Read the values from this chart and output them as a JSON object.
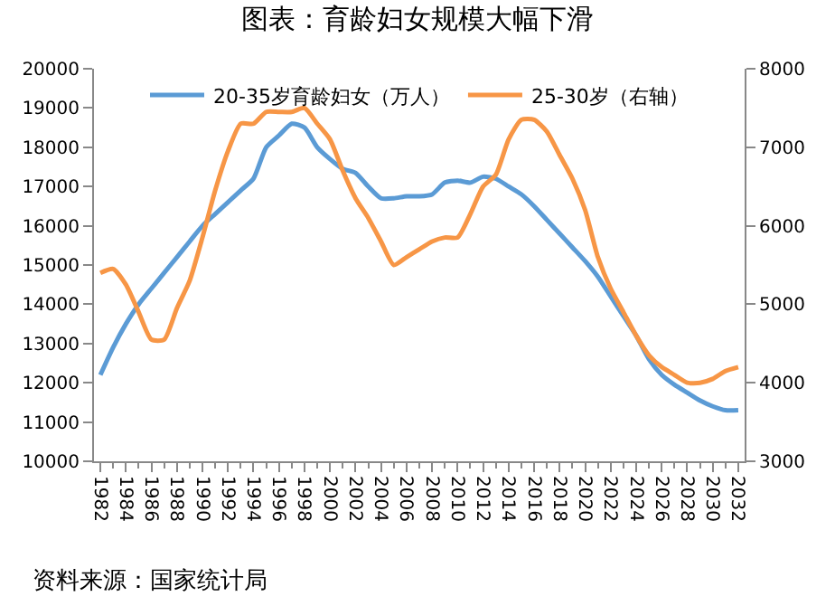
{
  "chart_data": {
    "type": "line",
    "title": "图表：育龄妇女规模大幅下滑",
    "x": [
      1982,
      1983,
      1984,
      1985,
      1986,
      1987,
      1988,
      1989,
      1990,
      1991,
      1992,
      1993,
      1994,
      1995,
      1996,
      1997,
      1998,
      1999,
      2000,
      2001,
      2002,
      2003,
      2004,
      2005,
      2006,
      2007,
      2008,
      2009,
      2010,
      2011,
      2012,
      2013,
      2014,
      2015,
      2016,
      2017,
      2018,
      2019,
      2020,
      2021,
      2022,
      2023,
      2024,
      2025,
      2026,
      2027,
      2028,
      2029,
      2030,
      2031,
      2032
    ],
    "series": [
      {
        "name": "20-35岁育龄妇女（万人）",
        "color": "#5b9bd5",
        "values": [
          12200,
          12900,
          13500,
          14000,
          14400,
          14800,
          15200,
          15600,
          16000,
          16300,
          16600,
          16900,
          17200,
          18000,
          18300,
          18600,
          18500,
          18000,
          17700,
          17450,
          17350,
          17000,
          16700,
          16700,
          16750,
          16750,
          16800,
          17100,
          17150,
          17100,
          17250,
          17200,
          17000,
          16800,
          16500,
          16150,
          15800,
          15450,
          15100,
          14700,
          14200,
          13700,
          13200,
          12600,
          12200,
          11950,
          11750,
          11550,
          11400,
          11300,
          11300
        ]
      },
      {
        "name": "25-30岁（右轴）",
        "color": "#f79646",
        "axis": "y2",
        "values": [
          5400,
          5450,
          5250,
          4900,
          4550,
          4550,
          4950,
          5300,
          5850,
          6450,
          6950,
          7300,
          7300,
          7450,
          7450,
          7450,
          7500,
          7300,
          7100,
          6700,
          6350,
          6100,
          5800,
          5500,
          5600,
          5700,
          5800,
          5850,
          5850,
          6150,
          6500,
          6650,
          7100,
          7350,
          7350,
          7200,
          6900,
          6600,
          6200,
          5600,
          5200,
          4900,
          4600,
          4350,
          4200,
          4100,
          4000,
          4000,
          4050,
          4150,
          4200
        ]
      }
    ],
    "xlim": [
      1981.5,
      2032.5
    ],
    "xticks": [
      1982,
      1984,
      1986,
      1988,
      1990,
      1992,
      1994,
      1996,
      1998,
      2000,
      2002,
      2004,
      2006,
      2008,
      2010,
      2012,
      2014,
      2016,
      2018,
      2020,
      2022,
      2024,
      2026,
      2028,
      2030,
      2032
    ],
    "ylim": [
      10000,
      20000
    ],
    "yticks": [
      10000,
      11000,
      12000,
      13000,
      14000,
      15000,
      16000,
      17000,
      18000,
      19000,
      20000
    ],
    "y2lim": [
      3000,
      8000
    ],
    "y2ticks": [
      3000,
      4000,
      5000,
      6000,
      7000,
      8000
    ],
    "legend": "top",
    "marker": "none",
    "line_style": "solid",
    "annotations": [
      "资料来源：国家统计局"
    ]
  }
}
